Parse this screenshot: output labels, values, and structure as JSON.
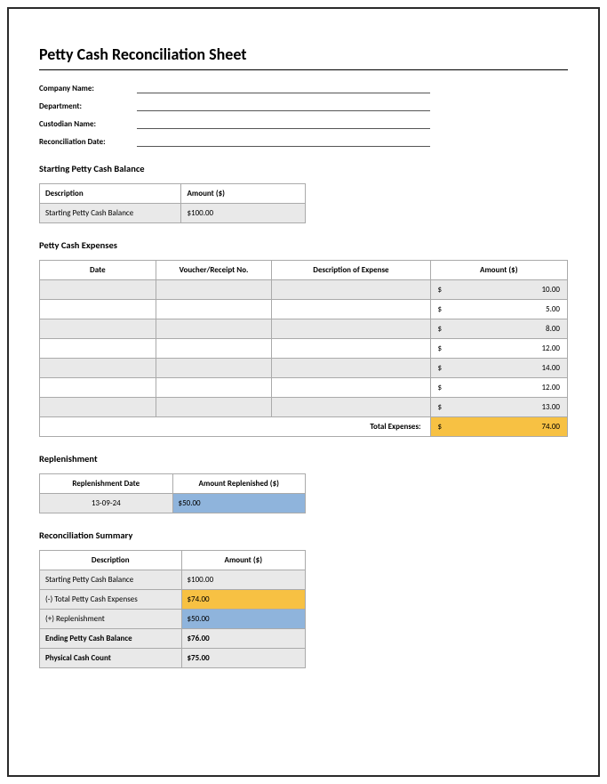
{
  "title": "Petty Cash Reconciliation Sheet",
  "info": {
    "company_label": "Company Name:",
    "department_label": "Department:",
    "custodian_label": "Custodian Name:",
    "date_label": "Reconciliation Date:"
  },
  "starting": {
    "section": "Starting Petty Cash Balance",
    "head_desc": "Description",
    "head_amt": "Amount ($)",
    "row_desc": "Starting Petty Cash Balance",
    "row_amt": "$100.00"
  },
  "expenses": {
    "section": "Petty Cash Expenses",
    "head_date": "Date",
    "head_vno": "Voucher/Receipt No.",
    "head_desc": "Description of Expense",
    "head_amt": "Amount ($)",
    "cur": "$",
    "rows": [
      {
        "amt": "10.00"
      },
      {
        "amt": "5.00"
      },
      {
        "amt": "8.00"
      },
      {
        "amt": "12.00"
      },
      {
        "amt": "14.00"
      },
      {
        "amt": "12.00"
      },
      {
        "amt": "13.00"
      }
    ],
    "total_label": "Total Expenses:",
    "total_amt": "74.00"
  },
  "replenishment": {
    "section": "Replenishment",
    "head_date": "Replenishment Date",
    "head_amt": "Amount Replenished ($)",
    "row_date": "13-09-24",
    "row_amt": "$50.00"
  },
  "summary": {
    "section": "Reconciliation Summary",
    "head_desc": "Description",
    "head_amt": "Amount ($)",
    "rows": [
      {
        "desc": "Starting Petty Cash Balance",
        "amt": "$100.00",
        "hl": ""
      },
      {
        "desc": "(-) Total Petty Cash Expenses",
        "amt": "$74.00",
        "hl": "yellow"
      },
      {
        "desc": "(+) Replenishment",
        "amt": "$50.00",
        "hl": "blue"
      },
      {
        "desc": "Ending Petty Cash Balance",
        "amt": "$76.00",
        "hl": "",
        "bold": true
      },
      {
        "desc": "Physical Cash Count",
        "amt": "$75.00",
        "hl": "",
        "bold": true
      }
    ]
  },
  "colors": {
    "yellow": "#f7c143",
    "blue": "#8fb4dc",
    "grey": "#e9e9e9",
    "border": "#aaaaaa"
  }
}
